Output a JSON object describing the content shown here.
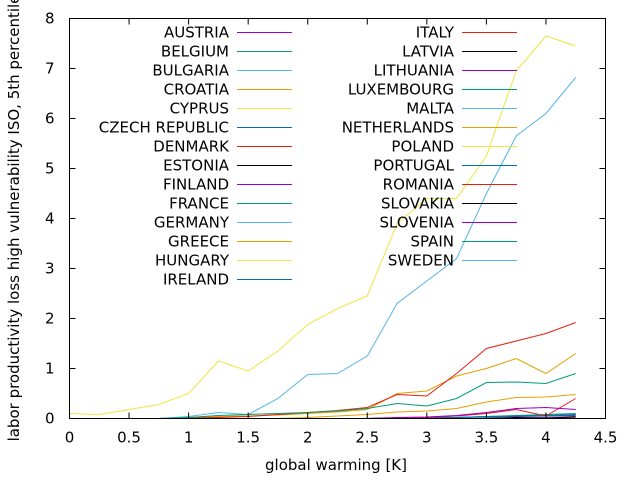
{
  "chart_data": {
    "type": "line",
    "title": "",
    "xlabel": "global warming [K]",
    "ylabel": "labor productivity loss high vulnerability ISO, 5th percentile",
    "xlim": [
      0,
      4.5
    ],
    "ylim": [
      0,
      8
    ],
    "xticks": [
      "0",
      "0.5",
      "1",
      "1.5",
      "2",
      "2.5",
      "3",
      "3.5",
      "4",
      "4.5"
    ],
    "yticks": [
      "0",
      "1",
      "2",
      "3",
      "4",
      "5",
      "6",
      "7",
      "8"
    ],
    "grid": false,
    "legend_position": "top, two columns",
    "x": [
      0,
      0.25,
      0.5,
      0.75,
      1.0,
      1.25,
      1.5,
      1.75,
      2.0,
      2.25,
      2.5,
      2.75,
      3.0,
      3.25,
      3.5,
      3.75,
      4.0,
      4.25
    ],
    "series": [
      {
        "name": "AUSTRIA",
        "color": "#9400d3",
        "values": [
          0,
          0,
          0,
          0,
          0,
          0,
          0,
          0,
          0,
          0,
          0,
          0.01,
          0.01,
          0.02,
          0.03,
          0.04,
          0.05,
          0.05
        ]
      },
      {
        "name": "BELGIUM",
        "color": "#009e73",
        "values": [
          0,
          0,
          0,
          0,
          0,
          0,
          0,
          0,
          0,
          0,
          0,
          0.01,
          0.01,
          0.02,
          0.03,
          0.05,
          0.06,
          0.07
        ]
      },
      {
        "name": "BULGARIA",
        "color": "#56b4e9",
        "values": [
          0,
          0,
          0,
          0,
          0,
          0,
          0,
          0,
          0,
          0,
          0,
          0,
          0,
          0,
          0.01,
          0.01,
          0.02,
          0.02
        ]
      },
      {
        "name": "CROATIA",
        "color": "#e69f00",
        "values": [
          0,
          0,
          0,
          0,
          0.02,
          0.04,
          0.05,
          0.07,
          0.1,
          0.13,
          0.18,
          0.5,
          0.55,
          0.85,
          1.0,
          1.2,
          0.9,
          1.3
        ]
      },
      {
        "name": "CYPRUS",
        "color": "#f0e442",
        "values": [
          0.1,
          0.08,
          0.18,
          0.28,
          0.5,
          1.15,
          0.95,
          1.35,
          1.88,
          2.2,
          2.45,
          3.9,
          4.4,
          4.4,
          5.25,
          6.95,
          7.65,
          7.45
        ]
      },
      {
        "name": "CZECH REPUBLIC",
        "color": "#0072b2",
        "values": [
          0,
          0,
          0,
          0,
          0,
          0,
          0,
          0,
          0,
          0,
          0,
          0,
          0,
          0,
          0,
          0.01,
          0.01,
          0.01
        ]
      },
      {
        "name": "DENMARK",
        "color": "#e51e10",
        "values": [
          0,
          0,
          0,
          0,
          0,
          0,
          0,
          0,
          0,
          0,
          0,
          0,
          0,
          0,
          0,
          0,
          0,
          0
        ]
      },
      {
        "name": "ESTONIA",
        "color": "#000000",
        "values": [
          0,
          0,
          0,
          0,
          0,
          0,
          0,
          0,
          0,
          0,
          0,
          0,
          0,
          0,
          0,
          0,
          0,
          0
        ]
      },
      {
        "name": "FINLAND",
        "color": "#9400d3",
        "values": [
          0,
          0,
          0,
          0,
          0,
          0,
          0,
          0,
          0,
          0,
          0,
          0,
          0,
          0,
          0,
          0,
          0,
          0
        ]
      },
      {
        "name": "FRANCE",
        "color": "#009e73",
        "values": [
          0,
          0,
          0,
          0,
          0,
          0,
          0,
          0,
          0,
          0,
          0,
          0.01,
          0.01,
          0.02,
          0.04,
          0.06,
          0.08,
          0.1
        ]
      },
      {
        "name": "GERMANY",
        "color": "#56b4e9",
        "values": [
          0,
          0,
          0,
          0,
          0,
          0,
          0,
          0,
          0,
          0,
          0,
          0,
          0,
          0,
          0,
          0,
          0,
          0
        ]
      },
      {
        "name": "GREECE",
        "color": "#e69f00",
        "values": [
          0,
          0,
          0,
          0,
          0,
          0,
          0,
          0,
          0.02,
          0.05,
          0.08,
          0.13,
          0.15,
          0.2,
          0.33,
          0.42,
          0.43,
          0.48
        ]
      },
      {
        "name": "HUNGARY",
        "color": "#f0e442",
        "values": [
          0,
          0,
          0,
          0,
          0,
          0,
          0,
          0,
          0,
          0,
          0,
          0,
          0,
          0,
          0,
          0,
          0,
          0.01
        ]
      },
      {
        "name": "IRELAND",
        "color": "#0072b2",
        "values": [
          0,
          0,
          0,
          0,
          0,
          0,
          0,
          0,
          0,
          0,
          0,
          0,
          0,
          0,
          0,
          0,
          0,
          0
        ]
      },
      {
        "name": "ITALY",
        "color": "#e51e10",
        "values": [
          0,
          0,
          0,
          0,
          0.01,
          0.02,
          0.04,
          0.08,
          0.12,
          0.16,
          0.22,
          0.48,
          0.45,
          0.9,
          1.4,
          1.55,
          1.7,
          1.92
        ]
      },
      {
        "name": "LATVIA",
        "color": "#000000",
        "values": [
          0,
          0,
          0,
          0,
          0,
          0,
          0,
          0,
          0,
          0,
          0,
          0,
          0,
          0,
          0,
          0,
          0,
          0
        ]
      },
      {
        "name": "LITHUANIA",
        "color": "#9400d3",
        "values": [
          0,
          0,
          0,
          0,
          0,
          0,
          0,
          0,
          0,
          0,
          0,
          0,
          0,
          0,
          0,
          0,
          0,
          0
        ]
      },
      {
        "name": "LUXEMBOURG",
        "color": "#009e73",
        "values": [
          0,
          0,
          0,
          0,
          0,
          0,
          0,
          0,
          0,
          0,
          0,
          0,
          0,
          0,
          0,
          0,
          0,
          0
        ]
      },
      {
        "name": "MALTA",
        "color": "#56b4e9",
        "values": [
          0,
          0,
          0,
          0,
          0.04,
          0.12,
          0.08,
          0.4,
          0.88,
          0.9,
          1.25,
          2.3,
          2.75,
          3.2,
          4.5,
          5.65,
          6.1,
          6.82
        ]
      },
      {
        "name": "NETHERLANDS",
        "color": "#e69f00",
        "values": [
          0,
          0,
          0,
          0,
          0,
          0,
          0,
          0,
          0,
          0,
          0,
          0,
          0,
          0,
          0,
          0,
          0,
          0
        ]
      },
      {
        "name": "POLAND",
        "color": "#f0e442",
        "values": [
          0,
          0,
          0,
          0,
          0,
          0,
          0,
          0,
          0,
          0,
          0,
          0,
          0,
          0,
          0,
          0,
          0,
          0
        ]
      },
      {
        "name": "PORTUGAL",
        "color": "#0072b2",
        "values": [
          0,
          0,
          0,
          0,
          0,
          0,
          0,
          0,
          0,
          0,
          0,
          0.01,
          0.01,
          0.02,
          0.04,
          0.05,
          0.06,
          0.08
        ]
      },
      {
        "name": "ROMANIA",
        "color": "#e51e10",
        "values": [
          0,
          0,
          0,
          0,
          0,
          0,
          0,
          0,
          0,
          0,
          0,
          0.01,
          0.02,
          0.05,
          0.1,
          0.18,
          0.05,
          0.4
        ]
      },
      {
        "name": "SLOVAKIA",
        "color": "#000000",
        "values": [
          0,
          0,
          0,
          0,
          0,
          0,
          0,
          0,
          0,
          0,
          0,
          0,
          0,
          0,
          0,
          0.02,
          0.01,
          0.03
        ]
      },
      {
        "name": "SLOVENIA",
        "color": "#9400d3",
        "values": [
          0,
          0,
          0,
          0,
          0,
          0,
          0,
          0,
          0,
          0,
          0,
          0.02,
          0.03,
          0.06,
          0.12,
          0.2,
          0.22,
          0.18
        ]
      },
      {
        "name": "SPAIN",
        "color": "#009e73",
        "values": [
          0,
          0,
          0,
          0,
          0.02,
          0.06,
          0.08,
          0.1,
          0.12,
          0.15,
          0.2,
          0.3,
          0.25,
          0.4,
          0.72,
          0.73,
          0.7,
          0.9
        ]
      },
      {
        "name": "SWEDEN",
        "color": "#56b4e9",
        "values": [
          0,
          0,
          0,
          0,
          0,
          0,
          0,
          0,
          0,
          0,
          0,
          0,
          0,
          0,
          0,
          0,
          0,
          0
        ]
      }
    ]
  }
}
